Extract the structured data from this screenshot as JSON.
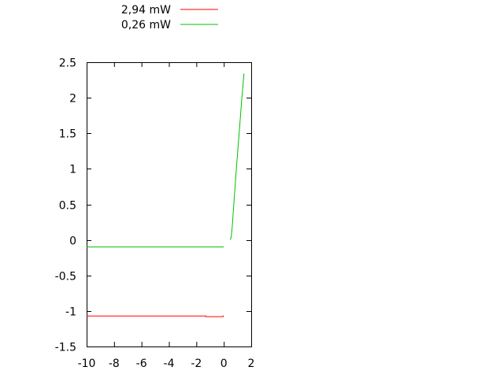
{
  "chart_data": {
    "type": "line",
    "title": "",
    "xlabel": "",
    "ylabel": "",
    "xlim": [
      -10,
      2
    ],
    "ylim": [
      -1.5,
      2.5
    ],
    "xticks": [
      "-10",
      "-8",
      "-6",
      "-4",
      "-2",
      "0",
      "2"
    ],
    "yticks": [
      "-1.5",
      "-1",
      "-0.5",
      "0",
      "0.5",
      "1",
      "1.5",
      "2",
      "2.5"
    ],
    "grid": false,
    "legend_position": "top-left, outside plot",
    "series": [
      {
        "name": "2,94 mW",
        "color": "#ff0000",
        "segments": [
          [
            [
              -10,
              -1.07
            ],
            [
              -1.3,
              -1.07
            ],
            [
              -1.3,
              -1.08
            ],
            [
              -0.05,
              -1.08
            ],
            [
              -0.05,
              -1.07
            ],
            [
              0.0,
              -1.07
            ]
          ]
        ]
      },
      {
        "name": "0,26 mW",
        "color": "#00c000",
        "segments": [
          [
            [
              -10,
              -0.1
            ],
            [
              0.0,
              -0.1
            ]
          ],
          [
            [
              0.48,
              0.0
            ],
            [
              0.55,
              0.05
            ],
            [
              0.62,
              0.2
            ],
            [
              0.75,
              0.55
            ],
            [
              0.9,
              0.95
            ],
            [
              1.1,
              1.45
            ],
            [
              1.3,
              1.95
            ],
            [
              1.47,
              2.34
            ]
          ]
        ]
      }
    ]
  }
}
